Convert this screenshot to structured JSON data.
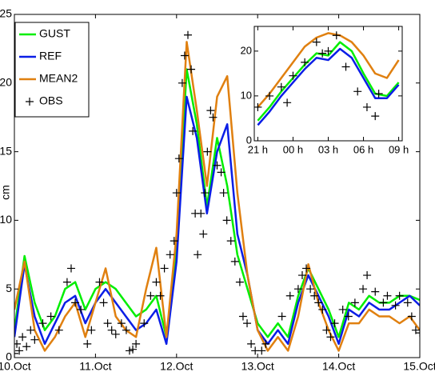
{
  "chart_data": [
    {
      "type": "line",
      "ylabel": "cm",
      "legend": "upper left",
      "xlim": [
        10,
        15
      ],
      "ylim": [
        0,
        25
      ],
      "xticks": [
        {
          "value": 10,
          "label": "10.Oct"
        },
        {
          "value": 11,
          "label": "11.Oct"
        },
        {
          "value": 12,
          "label": "12.Oct"
        },
        {
          "value": 13,
          "label": "13.Oct"
        },
        {
          "value": 14,
          "label": "14.Oct"
        },
        {
          "value": 15,
          "label": "15.Oct"
        }
      ],
      "yticks": [
        0,
        5,
        10,
        15,
        20,
        25
      ],
      "x": [
        10,
        10.125,
        10.25,
        10.375,
        10.5,
        10.625,
        10.75,
        10.875,
        11,
        11.125,
        11.25,
        11.375,
        11.5,
        11.625,
        11.75,
        11.875,
        12,
        12.125,
        12.25,
        12.375,
        12.5,
        12.625,
        12.75,
        12.875,
        13,
        13.125,
        13.25,
        13.375,
        13.5,
        13.625,
        13.75,
        13.875,
        14,
        14.125,
        14.25,
        14.375,
        14.5,
        14.625,
        14.75,
        14.875,
        15
      ],
      "series": [
        {
          "name": "GUST",
          "color": "#00ee00",
          "values": [
            2,
            7.4,
            4,
            2,
            3,
            5,
            5.5,
            3.5,
            5,
            5.5,
            5,
            4,
            3,
            3.5,
            4.5,
            1.5,
            8,
            21,
            17,
            11,
            16,
            12.5,
            7.5,
            5,
            2.5,
            1.5,
            2.5,
            1.5,
            4.5,
            6.5,
            5,
            3.5,
            1.5,
            4,
            3.5,
            4.5,
            4,
            4,
            4.5,
            4.5,
            4.2
          ]
        },
        {
          "name": "REF",
          "color": "#0a1ee6",
          "values": [
            1.5,
            6.8,
            3,
            1,
            2.5,
            4,
            4.5,
            2.5,
            4,
            5,
            4,
            3,
            2,
            2.5,
            3.5,
            1,
            7,
            19,
            16,
            10.5,
            15,
            17,
            9,
            6,
            2,
            1,
            2,
            1,
            4,
            6,
            4.5,
            3,
            1,
            3.5,
            3,
            4,
            3.5,
            3.5,
            4,
            4.5,
            3.8
          ]
        },
        {
          "name": "MEAN2",
          "color": "#e08010",
          "values": [
            3.5,
            7,
            2,
            0.5,
            1.5,
            3,
            4,
            1.5,
            4,
            6.5,
            3,
            2,
            1.5,
            5,
            8,
            1.5,
            9,
            23,
            18,
            12.5,
            19,
            20.5,
            12,
            6,
            2,
            0.5,
            1.5,
            0.5,
            3,
            6.8,
            4,
            2,
            0.5,
            2.5,
            2.5,
            3.5,
            3,
            3,
            2.5,
            3,
            2
          ]
        },
        {
          "name": "OBS",
          "color": "#000000",
          "marker": "+",
          "x": [
            10,
            10.03,
            10.06,
            10.1,
            10.15,
            10.2,
            10.25,
            10.35,
            10.45,
            10.55,
            10.65,
            10.7,
            10.75,
            10.82,
            10.9,
            10.95,
            11.05,
            11.1,
            11.15,
            11.2,
            11.25,
            11.32,
            11.38,
            11.42,
            11.46,
            11.5,
            11.6,
            11.68,
            11.75,
            11.8,
            11.85,
            11.92,
            11.97,
            12,
            12.03,
            12.07,
            12.1,
            12.14,
            12.18,
            12.2,
            12.23,
            12.26,
            12.3,
            12.33,
            12.35,
            12.38,
            12.42,
            12.45,
            12.5,
            12.55,
            12.58,
            12.62,
            12.67,
            12.72,
            12.78,
            12.82,
            12.87,
            12.92,
            12.97,
            13.05,
            13.1,
            13.3,
            13.4,
            13.5,
            13.55,
            13.6,
            13.65,
            13.7,
            13.75,
            13.8,
            13.85,
            13.9,
            13.95,
            14.05,
            14.12,
            14.2,
            14.3,
            14.35,
            14.45,
            14.55,
            14.6,
            14.7,
            14.75,
            14.85,
            14.9,
            14.95,
            15
          ],
          "values": [
            0.3,
            1,
            0.5,
            1.5,
            0.8,
            2,
            1.3,
            2.5,
            3,
            2,
            5.5,
            6.5,
            4,
            3.5,
            1,
            2,
            5.5,
            4,
            2.5,
            2,
            1.7,
            2.5,
            2,
            0.5,
            0.6,
            1,
            2.5,
            4.5,
            5.5,
            4.5,
            6.5,
            7.5,
            8.5,
            12,
            14.5,
            20,
            22,
            23.5,
            21,
            16.5,
            10.5,
            7.5,
            10.5,
            9,
            12,
            15,
            18,
            17.5,
            14,
            13.5,
            12,
            10,
            8.5,
            7,
            5.5,
            3,
            2.5,
            1,
            0.5,
            0.5,
            1,
            3,
            4.5,
            5,
            6,
            6.5,
            5,
            4.5,
            4,
            3.5,
            2,
            1.5,
            2.5,
            3.5,
            3,
            4,
            5,
            6,
            4.8,
            4,
            4.5,
            3.8,
            4.5,
            4,
            3,
            2,
            1.8
          ]
        }
      ]
    },
    {
      "type": "line",
      "xlim": [
        20.7,
        33.3
      ],
      "ylim": [
        0,
        25.5
      ],
      "xticks": [
        {
          "value": 21,
          "label": "21 h"
        },
        {
          "value": 24,
          "label": "00 h"
        },
        {
          "value": 27,
          "label": "03 h"
        },
        {
          "value": 30,
          "label": "06 h"
        },
        {
          "value": 33,
          "label": "09 h"
        }
      ],
      "yticks": [
        0,
        10,
        20
      ],
      "x": [
        21,
        22,
        23,
        24,
        25,
        26,
        27,
        28,
        29,
        30,
        31,
        32,
        33
      ],
      "series": [
        {
          "name": "GUST",
          "color": "#00ee00",
          "values": [
            4.5,
            7.5,
            11,
            14,
            17,
            19.5,
            19,
            22,
            20,
            15,
            10.5,
            10,
            13
          ]
        },
        {
          "name": "REF",
          "color": "#0a1ee6",
          "values": [
            3.5,
            6.5,
            10,
            13,
            16,
            18.5,
            18,
            20.5,
            18.5,
            14,
            9.5,
            9.5,
            12.5
          ]
        },
        {
          "name": "MEAN2",
          "color": "#e08010",
          "values": [
            7.5,
            10.5,
            14,
            17.5,
            21,
            23,
            24,
            23.5,
            22,
            19,
            15,
            14,
            18
          ]
        },
        {
          "name": "OBS",
          "color": "#000000",
          "marker": "+",
          "x": [
            21,
            22,
            23,
            23.5,
            24,
            25,
            26,
            26.5,
            27,
            27.7,
            28.5,
            29.5,
            30.3,
            31,
            31.3
          ],
          "values": [
            7.5,
            10,
            12,
            8.5,
            14.5,
            17.5,
            22,
            19.5,
            20,
            23.5,
            16.5,
            11,
            7.5,
            5.5,
            10.5
          ]
        }
      ]
    }
  ]
}
